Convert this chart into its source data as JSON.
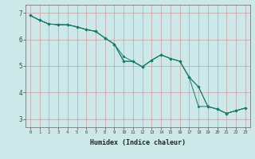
{
  "xlabel": "Humidex (Indice chaleur)",
  "background_color": "#cce8e8",
  "grid_color_v": "#d4a0a0",
  "grid_color_h": "#d4a0a0",
  "line_color": "#1a7a6a",
  "xlim": [
    -0.5,
    23.5
  ],
  "ylim": [
    2.7,
    7.3
  ],
  "yticks": [
    3,
    4,
    5,
    6,
    7
  ],
  "xticks": [
    0,
    1,
    2,
    3,
    4,
    5,
    6,
    7,
    8,
    9,
    10,
    11,
    12,
    13,
    14,
    15,
    16,
    17,
    18,
    19,
    20,
    21,
    22,
    23
  ],
  "line1_x": [
    0,
    1,
    2,
    3,
    4,
    5,
    6,
    7,
    8,
    9,
    10,
    11,
    12,
    13,
    14,
    15,
    16,
    17,
    18,
    19,
    20,
    21,
    22,
    23
  ],
  "line1_y": [
    6.9,
    6.72,
    6.58,
    6.55,
    6.55,
    6.47,
    6.37,
    6.3,
    6.05,
    5.82,
    5.18,
    5.17,
    4.97,
    5.22,
    5.42,
    5.28,
    5.18,
    4.58,
    4.22,
    3.48,
    3.38,
    3.22,
    3.32,
    3.42
  ],
  "line2_x": [
    0,
    1,
    2,
    3,
    4,
    5,
    6,
    7,
    8,
    9,
    10,
    11,
    12,
    13,
    14,
    15,
    16,
    17,
    18,
    19,
    20,
    21,
    22,
    23
  ],
  "line2_y": [
    6.9,
    6.72,
    6.58,
    6.55,
    6.55,
    6.47,
    6.37,
    6.3,
    6.05,
    5.82,
    5.35,
    5.17,
    4.97,
    5.22,
    5.42,
    5.28,
    5.18,
    4.58,
    4.22,
    3.48,
    3.38,
    3.22,
    3.32,
    3.42
  ],
  "line3_x": [
    0,
    1,
    2,
    3,
    4,
    5,
    6,
    7,
    8,
    9,
    10,
    11,
    12,
    13,
    14,
    15,
    16,
    17,
    18,
    19,
    20,
    21,
    22,
    23
  ],
  "line3_y": [
    6.9,
    6.72,
    6.58,
    6.55,
    6.55,
    6.47,
    6.37,
    6.3,
    6.05,
    5.82,
    5.18,
    5.17,
    4.97,
    5.22,
    5.42,
    5.28,
    5.18,
    4.58,
    3.48,
    3.48,
    3.38,
    3.22,
    3.32,
    3.42
  ]
}
